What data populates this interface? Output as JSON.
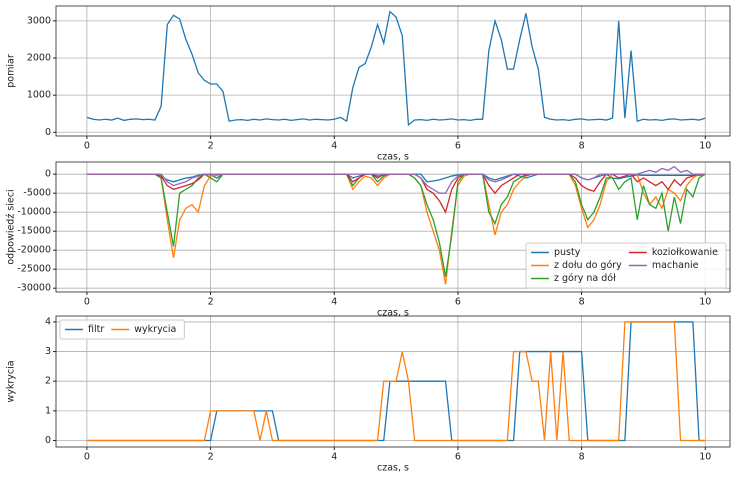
{
  "chart_data": [
    {
      "type": "line",
      "xlabel": "czas, s",
      "ylabel": "pomiar",
      "x": [
        0,
        0.1,
        0.2,
        0.3,
        0.4,
        0.5,
        0.6,
        0.7,
        0.8,
        0.9,
        1,
        1.1,
        1.2,
        1.3,
        1.4,
        1.5,
        1.6,
        1.7,
        1.8,
        1.9,
        2,
        2.1,
        2.2,
        2.3,
        2.4,
        2.5,
        2.6,
        2.7,
        2.8,
        2.9,
        3,
        3.1,
        3.2,
        3.3,
        3.4,
        3.5,
        3.6,
        3.7,
        3.8,
        3.9,
        4,
        4.1,
        4.2,
        4.3,
        4.4,
        4.5,
        4.6,
        4.7,
        4.8,
        4.9,
        5,
        5.1,
        5.2,
        5.3,
        5.4,
        5.5,
        5.6,
        5.7,
        5.8,
        5.9,
        6,
        6.1,
        6.2,
        6.3,
        6.4,
        6.5,
        6.6,
        6.7,
        6.8,
        6.9,
        7,
        7.1,
        7.2,
        7.3,
        7.4,
        7.5,
        7.6,
        7.7,
        7.8,
        7.9,
        8,
        8.1,
        8.2,
        8.3,
        8.4,
        8.5,
        8.6,
        8.7,
        8.8,
        8.9,
        9,
        9.1,
        9.2,
        9.3,
        9.4,
        9.5,
        9.6,
        9.7,
        9.8,
        9.9,
        10
      ],
      "series": [
        {
          "name": "pomiar",
          "color": "#1f77b4",
          "values": [
            400,
            350,
            330,
            350,
            330,
            380,
            320,
            350,
            360,
            340,
            350,
            330,
            700,
            2900,
            3150,
            3050,
            2500,
            2100,
            1600,
            1400,
            1300,
            1300,
            1100,
            300,
            330,
            340,
            320,
            350,
            330,
            360,
            340,
            330,
            350,
            320,
            340,
            360,
            330,
            350,
            340,
            330,
            350,
            400,
            300,
            1200,
            1750,
            1850,
            2300,
            2900,
            2400,
            3250,
            3100,
            2600,
            200,
            330,
            340,
            320,
            350,
            330,
            340,
            360,
            330,
            340,
            320,
            350,
            350,
            2200,
            3000,
            2500,
            1700,
            1700,
            2500,
            3200,
            2300,
            1700,
            400,
            350,
            330,
            340,
            320,
            350,
            360,
            330,
            340,
            350,
            330,
            380,
            3000,
            380,
            2200,
            300,
            350,
            330,
            340,
            320,
            350,
            360,
            330,
            340,
            350,
            330,
            380
          ]
        }
      ],
      "xlim": [
        -0.5,
        10.4
      ],
      "xticks": [
        0,
        2,
        4,
        6,
        8,
        10
      ],
      "ylim": [
        -100,
        3400
      ],
      "yticks": [
        0,
        1000,
        2000,
        3000
      ],
      "grid": true
    },
    {
      "type": "line",
      "xlabel": "czas, s",
      "ylabel": "odpowiedź sieci",
      "legend": "lower right",
      "legend_ncol": 2,
      "x": [
        0,
        0.1,
        0.2,
        0.3,
        0.4,
        0.5,
        0.6,
        0.7,
        0.8,
        0.9,
        1,
        1.1,
        1.2,
        1.3,
        1.4,
        1.5,
        1.6,
        1.7,
        1.8,
        1.9,
        2,
        2.1,
        2.2,
        2.3,
        2.4,
        2.5,
        2.6,
        2.7,
        2.8,
        2.9,
        3,
        3.1,
        3.2,
        3.3,
        3.4,
        3.5,
        3.6,
        3.7,
        3.8,
        3.9,
        4,
        4.1,
        4.2,
        4.3,
        4.4,
        4.5,
        4.6,
        4.7,
        4.8,
        4.9,
        5,
        5.1,
        5.2,
        5.3,
        5.4,
        5.5,
        5.6,
        5.7,
        5.8,
        5.9,
        6,
        6.1,
        6.2,
        6.3,
        6.4,
        6.5,
        6.6,
        6.7,
        6.8,
        6.9,
        7,
        7.1,
        7.2,
        7.3,
        7.4,
        7.5,
        7.6,
        7.7,
        7.8,
        7.9,
        8,
        8.1,
        8.2,
        8.3,
        8.4,
        8.5,
        8.6,
        8.7,
        8.8,
        8.9,
        9,
        9.1,
        9.2,
        9.3,
        9.4,
        9.5,
        9.6,
        9.7,
        9.8,
        9.9,
        10
      ],
      "series": [
        {
          "name": "pusty",
          "color": "#1f77b4",
          "values": [
            0,
            0,
            0,
            0,
            0,
            0,
            0,
            0,
            0,
            0,
            0,
            0,
            -500,
            -1500,
            -2000,
            -1500,
            -1000,
            -800,
            -300,
            0,
            -200,
            -1000,
            0,
            0,
            0,
            0,
            0,
            0,
            0,
            0,
            0,
            0,
            0,
            0,
            0,
            0,
            0,
            0,
            0,
            0,
            0,
            0,
            0,
            -1000,
            -500,
            0,
            0,
            -500,
            -300,
            0,
            0,
            0,
            0,
            0,
            0,
            -2000,
            -1800,
            -1500,
            -1000,
            -500,
            -200,
            0,
            0,
            0,
            0,
            -1000,
            -1500,
            -1000,
            -500,
            0,
            -500,
            -1000,
            -500,
            0,
            0,
            0,
            0,
            0,
            0,
            0,
            -1000,
            -1500,
            -1000,
            -500,
            0,
            -1000,
            -1200,
            -800,
            -500,
            -200,
            -300,
            -300,
            -300,
            -300,
            -300,
            -300,
            -300,
            -300,
            -300,
            -300,
            0
          ]
        },
        {
          "name": "z dołu do góry",
          "color": "#ff7f0e",
          "values": [
            0,
            0,
            0,
            0,
            0,
            0,
            0,
            0,
            0,
            0,
            0,
            0,
            -1000,
            -12000,
            -22000,
            -12000,
            -9000,
            -8000,
            -10000,
            -3000,
            -500,
            -300,
            0,
            0,
            0,
            0,
            0,
            0,
            0,
            0,
            0,
            0,
            0,
            0,
            0,
            0,
            0,
            0,
            0,
            0,
            0,
            0,
            0,
            -4000,
            -2000,
            -500,
            -1000,
            -3000,
            -1000,
            0,
            0,
            0,
            0,
            -1000,
            -3000,
            -10000,
            -15000,
            -20000,
            -29000,
            -15000,
            -3000,
            -500,
            0,
            0,
            0,
            -8000,
            -16000,
            -10000,
            -8000,
            -4000,
            -2000,
            -500,
            0,
            0,
            0,
            0,
            0,
            0,
            0,
            -3000,
            -9000,
            -14000,
            -12000,
            -8000,
            -2000,
            0,
            0,
            0,
            0,
            0,
            -5000,
            -8000,
            -6000,
            -9000,
            -4000,
            -5000,
            -7000,
            -3000,
            -1000,
            0,
            0
          ]
        },
        {
          "name": "z góry na dół",
          "color": "#2ca02c",
          "values": [
            0,
            0,
            0,
            0,
            0,
            0,
            0,
            0,
            0,
            0,
            0,
            0,
            -1000,
            -10000,
            -19000,
            -5000,
            -4000,
            -3000,
            -1000,
            0,
            -1000,
            -2000,
            0,
            0,
            0,
            0,
            0,
            0,
            0,
            0,
            0,
            0,
            0,
            0,
            0,
            0,
            0,
            0,
            0,
            0,
            0,
            0,
            0,
            -3000,
            -1000,
            0,
            0,
            -2000,
            -500,
            0,
            0,
            0,
            0,
            -1000,
            -3000,
            -8000,
            -12000,
            -18000,
            -27000,
            -16000,
            -2000,
            0,
            0,
            0,
            0,
            -10000,
            -13000,
            -8000,
            -6000,
            -2000,
            -1000,
            -300,
            0,
            0,
            0,
            0,
            0,
            0,
            0,
            -2000,
            -8000,
            -12000,
            -10000,
            -6000,
            -1000,
            -1000,
            -4000,
            -2000,
            -1000,
            -12000,
            -3000,
            -8000,
            -9000,
            -5000,
            -15000,
            -6000,
            -13000,
            -4000,
            -6000,
            -1000,
            0
          ]
        },
        {
          "name": "koziołkowanie",
          "color": "#d62728",
          "values": [
            0,
            0,
            0,
            0,
            0,
            0,
            0,
            0,
            0,
            0,
            0,
            0,
            -500,
            -3000,
            -4000,
            -3500,
            -3000,
            -2500,
            -1500,
            0,
            0,
            0,
            0,
            0,
            0,
            0,
            0,
            0,
            0,
            0,
            0,
            0,
            0,
            0,
            0,
            0,
            0,
            0,
            0,
            0,
            0,
            0,
            0,
            -2000,
            -1000,
            0,
            0,
            -1000,
            0,
            0,
            0,
            0,
            0,
            0,
            -1000,
            -4000,
            -5000,
            -7000,
            -10000,
            -4000,
            -1000,
            0,
            0,
            0,
            0,
            -3000,
            -5000,
            -3000,
            -2000,
            -1000,
            0,
            -300,
            0,
            0,
            0,
            0,
            0,
            0,
            0,
            -1000,
            -3000,
            -4000,
            -4500,
            -2000,
            0,
            0,
            -1000,
            -500,
            0,
            -2000,
            -1000,
            -2000,
            -3000,
            -2000,
            -4000,
            -1500,
            -3000,
            -1000,
            -500,
            0,
            0
          ]
        },
        {
          "name": "machanie",
          "color": "#9467bd",
          "values": [
            0,
            0,
            0,
            0,
            0,
            0,
            0,
            0,
            0,
            0,
            0,
            0,
            0,
            -2000,
            -3000,
            -2500,
            -2000,
            -1000,
            -500,
            0,
            0,
            0,
            0,
            0,
            0,
            0,
            0,
            0,
            0,
            0,
            0,
            0,
            0,
            0,
            0,
            0,
            0,
            0,
            0,
            0,
            0,
            0,
            0,
            0,
            0,
            0,
            0,
            0,
            0,
            0,
            0,
            0,
            0,
            0,
            -1000,
            -3000,
            -4000,
            -5000,
            -5000,
            -2000,
            -500,
            0,
            0,
            0,
            0,
            -1500,
            -2000,
            -1500,
            -800,
            0,
            0,
            0,
            0,
            0,
            0,
            0,
            0,
            0,
            0,
            0,
            -1000,
            -1500,
            -1000,
            0,
            0,
            0,
            0,
            0,
            0,
            0,
            500,
            1000,
            500,
            1500,
            1000,
            2000,
            500,
            1000,
            0,
            0,
            0
          ]
        }
      ],
      "xlim": [
        -0.5,
        10.4
      ],
      "xticks": [
        0,
        2,
        4,
        6,
        8,
        10
      ],
      "ylim": [
        -31000,
        3200
      ],
      "yticks": [
        0,
        -5000,
        -10000,
        -15000,
        -20000,
        -25000,
        -30000
      ],
      "grid": true
    },
    {
      "type": "line",
      "xlabel": "czas, s",
      "ylabel": "wykrycia",
      "legend": "upper left",
      "legend_ncol": 2,
      "x": [
        0,
        0.1,
        0.2,
        0.3,
        0.4,
        0.5,
        0.6,
        0.7,
        0.8,
        0.9,
        1,
        1.1,
        1.2,
        1.3,
        1.4,
        1.5,
        1.6,
        1.7,
        1.8,
        1.9,
        2,
        2.1,
        2.2,
        2.3,
        2.4,
        2.5,
        2.6,
        2.7,
        2.8,
        2.9,
        3,
        3.1,
        3.2,
        3.3,
        3.4,
        3.5,
        3.6,
        3.7,
        3.8,
        3.9,
        4,
        4.1,
        4.2,
        4.3,
        4.4,
        4.5,
        4.6,
        4.7,
        4.8,
        4.9,
        5,
        5.1,
        5.2,
        5.3,
        5.4,
        5.5,
        5.6,
        5.7,
        5.8,
        5.9,
        6,
        6.1,
        6.2,
        6.3,
        6.4,
        6.5,
        6.6,
        6.7,
        6.8,
        6.9,
        7,
        7.1,
        7.2,
        7.3,
        7.4,
        7.5,
        7.6,
        7.7,
        7.8,
        7.9,
        8,
        8.1,
        8.2,
        8.3,
        8.4,
        8.5,
        8.6,
        8.7,
        8.8,
        8.9,
        9,
        9.1,
        9.2,
        9.3,
        9.4,
        9.5,
        9.6,
        9.7,
        9.8,
        9.9,
        10
      ],
      "series": [
        {
          "name": "filtr",
          "color": "#1f77b4",
          "values": [
            0,
            0,
            0,
            0,
            0,
            0,
            0,
            0,
            0,
            0,
            0,
            0,
            0,
            0,
            0,
            0,
            0,
            0,
            0,
            0,
            0,
            1,
            1,
            1,
            1,
            1,
            1,
            1,
            1,
            1,
            1,
            0,
            0,
            0,
            0,
            0,
            0,
            0,
            0,
            0,
            0,
            0,
            0,
            0,
            0,
            0,
            0,
            0,
            0,
            2,
            2,
            2,
            2,
            2,
            2,
            2,
            2,
            2,
            2,
            0,
            0,
            0,
            0,
            0,
            0,
            0,
            0,
            0,
            0,
            0,
            3,
            3,
            3,
            3,
            3,
            3,
            3,
            3,
            3,
            3,
            3,
            0,
            0,
            0,
            0,
            0,
            0,
            0,
            4,
            4,
            4,
            4,
            4,
            4,
            4,
            4,
            4,
            4,
            4,
            0,
            0
          ]
        },
        {
          "name": "wykrycia",
          "color": "#ff7f0e",
          "values": [
            0,
            0,
            0,
            0,
            0,
            0,
            0,
            0,
            0,
            0,
            0,
            0,
            0,
            0,
            0,
            0,
            0,
            0,
            0,
            0,
            1,
            1,
            1,
            1,
            1,
            1,
            1,
            1,
            0,
            1,
            0,
            0,
            0,
            0,
            0,
            0,
            0,
            0,
            0,
            0,
            0,
            0,
            0,
            0,
            0,
            0,
            0,
            0,
            2,
            2,
            2,
            3,
            2,
            0,
            0,
            0,
            0,
            0,
            0,
            0,
            0,
            0,
            0,
            0,
            0,
            0,
            0,
            0,
            0,
            3,
            3,
            3,
            2,
            2,
            0,
            3,
            0,
            3,
            0,
            0,
            0,
            0,
            0,
            0,
            0,
            0,
            0,
            4,
            4,
            4,
            4,
            4,
            4,
            4,
            4,
            4,
            0,
            0,
            0,
            0,
            0
          ]
        }
      ],
      "xlim": [
        -0.5,
        10.4
      ],
      "xticks": [
        0,
        2,
        4,
        6,
        8,
        10
      ],
      "ylim": [
        -0.22,
        4.2
      ],
      "yticks": [
        0,
        1,
        2,
        3,
        4
      ],
      "grid": true
    }
  ]
}
